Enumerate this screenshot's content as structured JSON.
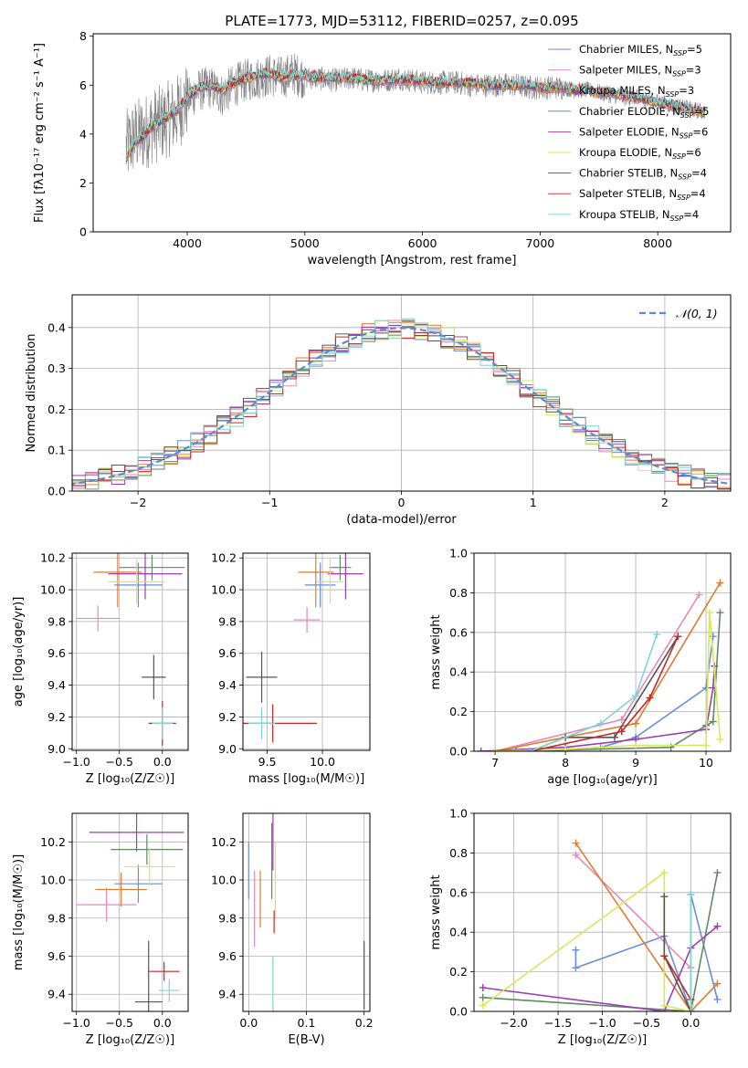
{
  "series_styles": [
    {
      "name": "Chabrier MILES",
      "color": "#6a8fd6"
    },
    {
      "name": "Salpeter MILES",
      "color": "#e88ab8"
    },
    {
      "name": "Kroupa MILES",
      "color": "#e07a2c"
    },
    {
      "name": "Chabrier ELODIE",
      "color": "#5f8a62"
    },
    {
      "name": "Salpeter ELODIE",
      "color": "#9b3fb0"
    },
    {
      "name": "Kroupa ELODIE",
      "color": "#d8e858"
    },
    {
      "name": "Chabrier STELIB",
      "color": "#555555"
    },
    {
      "name": "Salpeter STELIB",
      "color": "#c62828"
    },
    {
      "name": "Kroupa STELIB",
      "color": "#7fd4d4"
    }
  ],
  "chart_data": [
    {
      "id": "spectrum",
      "type": "line",
      "title": "PLATE=1773, MJD=53112, FIBERID=0257, z=0.095",
      "xlabel": "wavelength [Angstrom, rest frame]",
      "ylabel": "Flux [fλ10⁻¹⁷ erg cm⁻² s⁻¹ A⁻¹]",
      "xlim": [
        3200,
        8620
      ],
      "ylim": [
        0,
        8.1
      ],
      "xticks": [
        4000,
        5000,
        6000,
        7000,
        8000
      ],
      "yticks": [
        0,
        2,
        4,
        6,
        8
      ],
      "grid": false,
      "legend_position": "top-right",
      "legend": [
        {
          "label": "Chabrier MILES, N",
          "sub": "SSP",
          "suffix": "=5"
        },
        {
          "label": "Salpeter MILES, N",
          "sub": "SSP",
          "suffix": "=3"
        },
        {
          "label": "Kroupa MILES, N",
          "sub": "SSP",
          "suffix": "=3"
        },
        {
          "label": "Chabrier ELODIE, N",
          "sub": "SSP",
          "suffix": "=5"
        },
        {
          "label": "Salpeter ELODIE, N",
          "sub": "SSP",
          "suffix": "=6"
        },
        {
          "label": "Kroupa ELODIE, N",
          "sub": "SSP",
          "suffix": "=6"
        },
        {
          "label": "Chabrier STELIB, N",
          "sub": "SSP",
          "suffix": "=4"
        },
        {
          "label": "Salpeter STELIB, N",
          "sub": "SSP",
          "suffix": "=4"
        },
        {
          "label": "Kroupa STELIB, N",
          "sub": "SSP",
          "suffix": "=4"
        }
      ],
      "observed_color": "#808080",
      "observed": {
        "x": [
          3480,
          3550,
          3620,
          3700,
          3800,
          3900,
          4000,
          4100,
          4200,
          4300,
          4400,
          4500,
          4600,
          4700,
          4800,
          4900,
          5000,
          5100,
          5200,
          5300,
          5400,
          5500,
          5600,
          5700,
          5800,
          5900,
          6000,
          6100,
          6200,
          6300,
          6400,
          6500,
          6600,
          6700,
          6800,
          6900,
          7000,
          7100,
          7200,
          7300,
          7400,
          7500,
          7600,
          7700,
          7800,
          7900,
          8000,
          8100,
          8200,
          8300,
          8400
        ],
        "y": [
          3.4,
          3.9,
          4.0,
          4.3,
          4.5,
          4.8,
          5.4,
          5.8,
          5.9,
          5.6,
          6.0,
          6.2,
          6.3,
          6.4,
          6.3,
          6.5,
          6.3,
          6.3,
          6.2,
          6.2,
          6.3,
          6.2,
          6.2,
          6.2,
          6.3,
          6.2,
          6.1,
          6.1,
          6.1,
          6.1,
          6.0,
          6.0,
          6.0,
          6.0,
          6.0,
          5.9,
          5.9,
          5.9,
          5.9,
          5.8,
          5.8,
          5.7,
          5.6,
          5.5,
          5.5,
          5.4,
          5.3,
          5.2,
          5.1,
          5.0,
          4.9
        ]
      },
      "model": {
        "x": [
          3480,
          3550,
          3620,
          3700,
          3800,
          3900,
          4000,
          4100,
          4200,
          4300,
          4400,
          4500,
          4600,
          4700,
          4800,
          4900,
          5000,
          5100,
          5200,
          5300,
          5400,
          5500,
          5600,
          5700,
          5800,
          5900,
          6000,
          6100,
          6200,
          6300,
          6400,
          6500,
          6600,
          6700,
          6800,
          6900,
          7000,
          7100,
          7200,
          7300,
          7400,
          7500,
          7600,
          7700,
          7800,
          7900,
          8000,
          8100,
          8200,
          8300,
          8400
        ],
        "y": [
          3.0,
          3.6,
          3.9,
          4.3,
          4.6,
          4.9,
          5.5,
          5.9,
          6.0,
          5.8,
          6.1,
          6.3,
          6.4,
          6.5,
          6.3,
          6.4,
          6.4,
          6.3,
          6.3,
          6.3,
          6.3,
          6.2,
          6.2,
          6.2,
          6.2,
          6.2,
          6.2,
          6.1,
          6.1,
          6.1,
          6.1,
          6.0,
          6.0,
          6.0,
          6.0,
          6.0,
          5.9,
          5.9,
          5.9,
          5.8,
          5.8,
          5.7,
          5.7,
          5.6,
          5.5,
          5.4,
          5.3,
          5.2,
          5.1,
          5.0,
          4.9
        ]
      }
    },
    {
      "id": "residuals",
      "type": "bar",
      "xlabel": "(data-model)/error",
      "ylabel": "Normed distribution",
      "xlim": [
        -2.5,
        2.5
      ],
      "ylim": [
        0,
        0.48
      ],
      "xticks": [
        -2,
        -1,
        0,
        1,
        2
      ],
      "yticks": [
        0.0,
        0.1,
        0.2,
        0.3,
        0.4
      ],
      "grid": true,
      "legend_position": "top-right",
      "legend": [
        {
          "label": "𝒩(0, 1)"
        }
      ],
      "gaussian_color": "#5b8bd6",
      "gaussian": {
        "mean": 0,
        "sigma": 1
      }
    },
    {
      "id": "age-vs-Z",
      "type": "scatter",
      "xlabel": "Z [log₁₀(Z/Z☉)]",
      "ylabel": "age  [log₁₀(age/yr)]",
      "xlim": [
        -1.05,
        0.3
      ],
      "ylim": [
        8.99,
        10.23
      ],
      "xticks": [
        -1.0,
        -0.5,
        0.0
      ],
      "yticks": [
        9.0,
        9.2,
        9.4,
        9.6,
        9.8,
        10.0,
        10.2
      ],
      "grid": true,
      "points": [
        {
          "x": -0.28,
          "y": 10.03,
          "xerr": 0.28,
          "yerr": 0.14
        },
        {
          "x": -0.75,
          "y": 9.82,
          "xerr": 0.25,
          "yerr": 0.08
        },
        {
          "x": -0.52,
          "y": 10.11,
          "xerr": 0.28,
          "yerr": 0.22
        },
        {
          "x": -0.12,
          "y": 10.14,
          "xerr": 0.38,
          "yerr": 0.08
        },
        {
          "x": -0.2,
          "y": 10.1,
          "xerr": 0.43,
          "yerr": 0.16
        },
        {
          "x": -0.3,
          "y": 10.05,
          "xerr": 0.33,
          "yerr": 0.14
        },
        {
          "x": -0.1,
          "y": 9.45,
          "xerr": 0.14,
          "yerr": 0.14
        },
        {
          "x": 0.0,
          "y": 9.16,
          "xerr": 0.16,
          "yerr": 0.14
        },
        {
          "x": 0.0,
          "y": 9.16,
          "xerr": 0.12,
          "yerr": 0.1
        }
      ]
    },
    {
      "id": "age-vs-mass",
      "type": "scatter",
      "xlabel": "mass [log₁₀(M/M☉)]",
      "ylabel": "",
      "xlim": [
        9.28,
        10.43
      ],
      "ylim": [
        8.99,
        10.23
      ],
      "xticks": [
        9.5,
        10.0
      ],
      "yticks": [
        9.0,
        9.2,
        9.4,
        9.6,
        9.8,
        10.0,
        10.2
      ],
      "grid": true,
      "points": [
        {
          "x": 9.98,
          "y": 10.03,
          "xerr": 0.14,
          "yerr": 0.14
        },
        {
          "x": 9.86,
          "y": 9.81,
          "xerr": 0.12,
          "yerr": 0.08
        },
        {
          "x": 9.94,
          "y": 10.11,
          "xerr": 0.16,
          "yerr": 0.22
        },
        {
          "x": 10.16,
          "y": 10.14,
          "xerr": 0.1,
          "yerr": 0.08
        },
        {
          "x": 10.21,
          "y": 10.1,
          "xerr": 0.16,
          "yerr": 0.16
        },
        {
          "x": 10.07,
          "y": 10.05,
          "xerr": 0.12,
          "yerr": 0.14
        },
        {
          "x": 9.45,
          "y": 9.45,
          "xerr": 0.14,
          "yerr": 0.16
        },
        {
          "x": 9.55,
          "y": 9.16,
          "xerr": 0.4,
          "yerr": 0.12
        },
        {
          "x": 9.45,
          "y": 9.16,
          "xerr": 0.12,
          "yerr": 0.1
        }
      ]
    },
    {
      "id": "mass-weight-vs-age",
      "type": "line",
      "xlabel": "age  [log₁₀(age/yr)]",
      "ylabel": "mass weight",
      "xlim": [
        6.7,
        10.35
      ],
      "ylim": [
        0,
        1.0
      ],
      "xticks": [
        7,
        8,
        9,
        10
      ],
      "yticks": [
        0.0,
        0.2,
        0.4,
        0.6,
        0.8,
        1.0
      ],
      "grid": true,
      "series": [
        {
          "x": [
            7.5,
            8.5,
            9.0,
            10.0,
            10.1
          ],
          "y": [
            0.0,
            0.02,
            0.07,
            0.32,
            0.58
          ]
        },
        {
          "x": [
            7.0,
            8.8,
            9.9
          ],
          "y": [
            0.0,
            0.16,
            0.79
          ]
        },
        {
          "x": [
            7.0,
            9.0,
            10.2
          ],
          "y": [
            0.0,
            0.14,
            0.85
          ]
        },
        {
          "x": [
            7.3,
            9.5,
            10.0,
            10.1,
            10.2
          ],
          "y": [
            0.0,
            0.02,
            0.13,
            0.15,
            0.7
          ]
        },
        {
          "x": [
            6.8,
            8.0,
            9.0,
            10.0,
            10.1,
            10.12
          ],
          "y": [
            0.0,
            0.02,
            0.06,
            0.11,
            0.32,
            0.43
          ]
        },
        {
          "x": [
            7.0,
            8.0,
            9.0,
            10.0,
            10.05,
            10.2
          ],
          "y": [
            0.0,
            0.01,
            0.03,
            0.03,
            0.7,
            0.06
          ]
        },
        {
          "x": [
            7.5,
            8.0,
            8.7,
            9.6
          ],
          "y": [
            0.0,
            0.07,
            0.07,
            0.58
          ]
        },
        {
          "x": [
            7.5,
            8.8,
            9.2,
            9.6
          ],
          "y": [
            0.0,
            0.1,
            0.27,
            0.58
          ]
        },
        {
          "x": [
            7.5,
            8.5,
            9.0,
            9.3
          ],
          "y": [
            0.0,
            0.14,
            0.28,
            0.59
          ]
        }
      ]
    },
    {
      "id": "mass-vs-Z",
      "type": "scatter",
      "xlabel": "Z [log₁₀(Z/Z☉)]",
      "ylabel": "mass [log₁₀(M/M☉)]",
      "xlim": [
        -1.05,
        0.3
      ],
      "ylim": [
        9.31,
        10.35
      ],
      "xticks": [
        -1.0,
        -0.5,
        0.0
      ],
      "yticks": [
        9.4,
        9.6,
        9.8,
        10.0,
        10.2
      ],
      "grid": true,
      "points": [
        {
          "x": -0.28,
          "y": 9.98,
          "xerr": 0.28,
          "yerr": 0.1
        },
        {
          "x": -0.65,
          "y": 9.87,
          "xerr": 0.35,
          "yerr": 0.09
        },
        {
          "x": -0.48,
          "y": 9.95,
          "xerr": 0.3,
          "yerr": 0.09
        },
        {
          "x": -0.18,
          "y": 10.16,
          "xerr": 0.42,
          "yerr": 0.08
        },
        {
          "x": -0.3,
          "y": 10.25,
          "xerr": 0.55,
          "yerr": 0.1
        },
        {
          "x": -0.15,
          "y": 10.07,
          "xerr": 0.3,
          "yerr": 0.1
        },
        {
          "x": -0.16,
          "y": 9.36,
          "xerr": 0.16,
          "yerr": 0.32
        },
        {
          "x": 0.02,
          "y": 9.52,
          "xerr": 0.18,
          "yerr": 0.05
        },
        {
          "x": 0.08,
          "y": 9.42,
          "xerr": 0.12,
          "yerr": 0.06
        }
      ]
    },
    {
      "id": "mass-vs-EBV",
      "type": "scatter",
      "xlabel": "E(B-V)",
      "ylabel": "",
      "xlim": [
        -0.01,
        0.21
      ],
      "ylim": [
        9.31,
        10.35
      ],
      "xticks": [
        0.0,
        0.1,
        0.2
      ],
      "yticks": [
        9.4,
        9.6,
        9.8,
        10.0,
        10.2
      ],
      "grid": true,
      "points": [
        {
          "x": 0.0,
          "y": 10.05,
          "xerr": 0,
          "yerr": 0.15
        },
        {
          "x": 0.01,
          "y": 9.85,
          "xerr": 0,
          "yerr": 0.2
        },
        {
          "x": 0.02,
          "y": 9.9,
          "xerr": 0,
          "yerr": 0.15
        },
        {
          "x": 0.04,
          "y": 10.1,
          "xerr": 0,
          "yerr": 0.2
        },
        {
          "x": 0.042,
          "y": 10.2,
          "xerr": 0,
          "yerr": 0.15
        },
        {
          "x": 0.046,
          "y": 10.0,
          "xerr": 0,
          "yerr": 0.2
        },
        {
          "x": 0.2,
          "y": 9.5,
          "xerr": 0,
          "yerr": 0.18
        },
        {
          "x": 0.044,
          "y": 9.78,
          "xerr": 0,
          "yerr": 0.06
        },
        {
          "x": 0.042,
          "y": 9.45,
          "xerr": 0,
          "yerr": 0.15
        }
      ]
    },
    {
      "id": "mass-weight-vs-Z",
      "type": "line",
      "xlabel": "Z [log₁₀(Z/Z☉)]",
      "ylabel": "mass weight",
      "xlim": [
        -2.45,
        0.45
      ],
      "ylim": [
        0,
        1.0
      ],
      "xticks": [
        -2.0,
        -1.5,
        -1.0,
        -0.5,
        0.0
      ],
      "yticks": [
        0.0,
        0.2,
        0.4,
        0.6,
        0.8,
        1.0
      ],
      "grid": true,
      "series": [
        {
          "x": [
            -1.3,
            -1.3,
            -0.3,
            0.0,
            0.0,
            0.3
          ],
          "y": [
            0.31,
            0.22,
            0.38,
            0.0,
            0.59,
            0.06
          ]
        },
        {
          "x": [
            -1.3,
            0.0
          ],
          "y": [
            0.79,
            0.22
          ]
        },
        {
          "x": [
            -1.3,
            0.0,
            0.3
          ],
          "y": [
            0.85,
            0.0,
            0.14
          ]
        },
        {
          "x": [
            -2.35,
            0.0,
            0.3
          ],
          "y": [
            0.07,
            0.0,
            0.7
          ]
        },
        {
          "x": [
            -2.35,
            -0.3,
            0.0,
            0.3
          ],
          "y": [
            0.12,
            0.0,
            0.32,
            0.43
          ]
        },
        {
          "x": [
            -2.35,
            -0.3,
            -0.3,
            0.0,
            0.0
          ],
          "y": [
            0.03,
            0.7,
            0.03,
            0.0,
            0.03
          ]
        },
        {
          "x": [
            -0.3,
            -0.3,
            0.0
          ],
          "y": [
            0.58,
            0.28,
            0.0
          ]
        },
        {
          "x": [
            -0.3,
            0.0
          ],
          "y": [
            0.28,
            0.06
          ]
        },
        {
          "x": [
            0.0,
            0.0
          ],
          "y": [
            0.59,
            0.0
          ]
        }
      ]
    }
  ]
}
